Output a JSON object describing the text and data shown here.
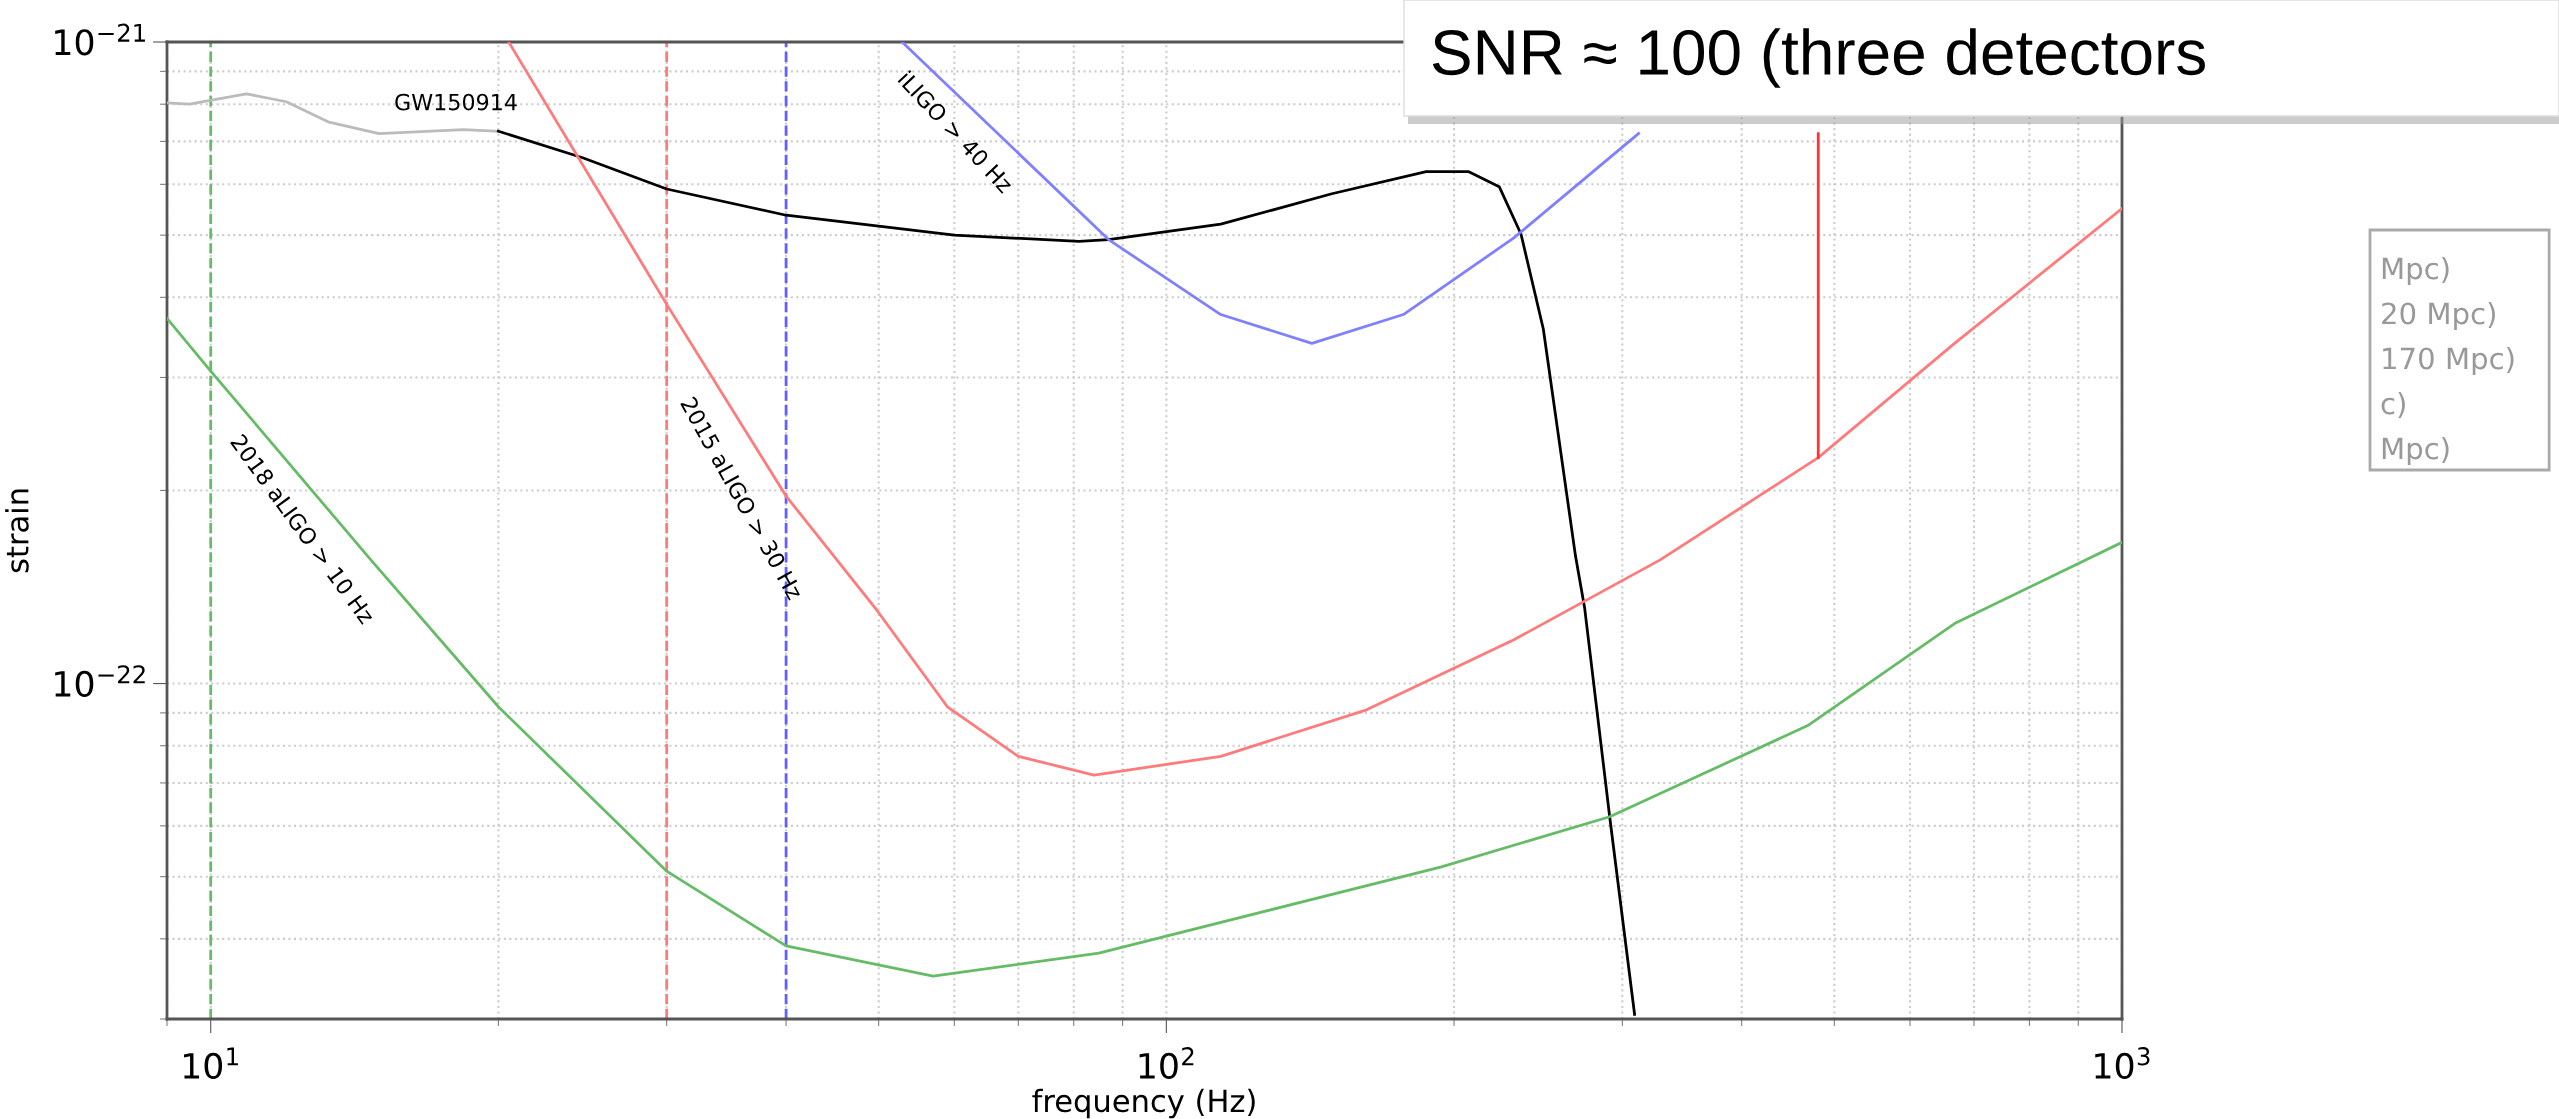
{
  "chart_data": {
    "type": "line",
    "xlabel": "frequency (Hz)",
    "ylabel": "strain",
    "log": "xy",
    "grid": true,
    "xlim": [
      9,
      1000
    ],
    "ylim": [
      3e-23,
      1e-21
    ],
    "xticks": [
      {
        "value": 10,
        "label": "10$^{1}$"
      },
      {
        "value": 100,
        "label": "10$^{2}$"
      },
      {
        "value": 1000,
        "label": "10$^{3}$"
      }
    ],
    "yticks": [
      {
        "value": 1e-22,
        "label": "10$^{−22}$"
      },
      {
        "value": 1e-21,
        "label": "10$^{−21}$"
      }
    ],
    "series": [
      {
        "color": "#bbbbbb",
        "x": [
          9.0,
          9.5,
          10.9,
          12.0,
          13.3,
          15.0,
          16.6,
          18.4,
          20.0
        ],
        "values": [
          8.04e-22,
          8e-22,
          8.3e-22,
          8.07e-22,
          7.5e-22,
          7.2e-22,
          7.25e-22,
          7.3e-22,
          7.26e-22
        ]
      },
      {
        "color": "#000000",
        "x": [
          20.0,
          24.5,
          30,
          40,
          60,
          81,
          87,
          114,
          149,
          187,
          207,
          223,
          235,
          248,
          268,
          274,
          291,
          309
        ],
        "values": [
          7.26e-22,
          6.6e-22,
          5.9e-22,
          5.37e-22,
          5e-22,
          4.89e-22,
          4.92e-22,
          5.2e-22,
          5.8e-22,
          6.28e-22,
          6.28e-22,
          5.95e-22,
          5.02e-22,
          3.57e-22,
          1.58e-22,
          1.31e-22,
          6.2e-23,
          3.05e-23
        ]
      },
      {
        "color": "#ff7b7b",
        "x": [
          20.5,
          30,
          40,
          49.8,
          59,
          70,
          84,
          114,
          162,
          231,
          329,
          481,
          668,
          1000
        ],
        "values": [
          1e-21,
          3.9e-22,
          1.96e-22,
          1.3e-22,
          9.2e-23,
          7.7e-23,
          7.2e-23,
          7.7e-23,
          9.1e-23,
          1.17e-22,
          1.56e-22,
          2.25e-22,
          3.39e-22,
          5.5e-22
        ]
      },
      {
        "color": "#ff3333",
        "x": [
          481,
          481
        ],
        "values": [
          2.25e-22,
          7.2e-22
        ]
      },
      {
        "color": "#8080ff",
        "x": [
          52.9,
          87,
          114,
          142,
          177,
          231,
          312
        ],
        "values": [
          1e-21,
          4.92e-22,
          3.76e-22,
          3.39e-22,
          3.76e-22,
          4.95e-22,
          7.2e-22
        ]
      },
      {
        "color": "#66bb66",
        "x": [
          9.0,
          10,
          14.7,
          20,
          30,
          40,
          57,
          85,
          100,
          194,
          291,
          469,
          668,
          1000
        ],
        "values": [
          3.71e-22,
          3.07e-22,
          1.56e-22,
          9.2e-23,
          5.1e-23,
          3.9e-23,
          3.5e-23,
          3.8e-23,
          4.04e-23,
          5.18e-23,
          6.2e-23,
          8.6e-23,
          1.24e-22,
          1.66e-22
        ]
      }
    ],
    "ref_lines": [
      {
        "axis": "x",
        "value": 10,
        "color": "#66bb66",
        "line_style": "dashed"
      },
      {
        "axis": "x",
        "value": 30,
        "color": "#ff7b7b",
        "line_style": "dashed"
      },
      {
        "axis": "x",
        "value": 40,
        "color": "#6060ff",
        "line_style": "dashed"
      }
    ],
    "annotations": [
      "GW150914",
      "iLIGO > 40 Hz",
      "2015 aLIGO > 30 Hz",
      "2018 aLIGO > 10 Hz",
      "SNR ≈ 100 (three detectors",
      "Mpc)",
      "20 Mpc)",
      "170 Mpc)",
      "c)",
      "Mpc)"
    ]
  }
}
